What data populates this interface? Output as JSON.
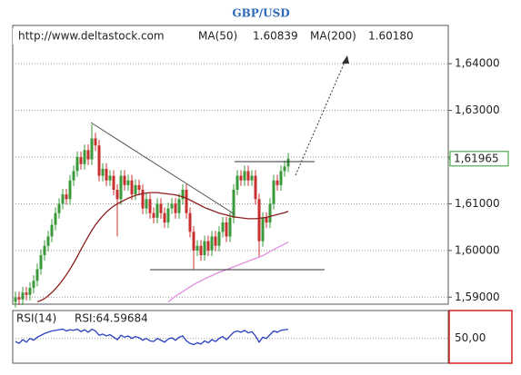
{
  "chart_data": [
    {
      "type": "candlestick",
      "title": "GBP/USD",
      "source": "http://www.deltastock.com",
      "open": [
        1.589,
        1.59,
        1.5895,
        1.591,
        1.5905,
        1.592,
        1.5935,
        1.596,
        1.599,
        1.601,
        1.603,
        1.6055,
        1.608,
        1.61,
        1.612,
        1.611,
        1.615,
        1.617,
        1.62,
        1.6185,
        1.6215,
        1.6195,
        1.624,
        1.6225,
        1.616,
        1.6175,
        1.615,
        1.616,
        1.613,
        1.611,
        1.616,
        1.614,
        1.615,
        1.612,
        1.614,
        1.613,
        1.609,
        1.611,
        1.608,
        1.607,
        1.61,
        1.608,
        1.606,
        1.609,
        1.61,
        1.608,
        1.611,
        1.613,
        1.608,
        1.604,
        1.6,
        1.601,
        1.599,
        1.602,
        1.6,
        1.603,
        1.601,
        1.604,
        1.606,
        1.603,
        1.607,
        1.613,
        1.616,
        1.615,
        1.617,
        1.615,
        1.616,
        1.611,
        1.602,
        1.607,
        1.606,
        1.61,
        1.615,
        1.614,
        1.617,
        1.618
      ],
      "high": [
        1.5912,
        1.5912,
        1.5922,
        1.5922,
        1.5932,
        1.5947,
        1.5972,
        1.6002,
        1.6022,
        1.6042,
        1.6067,
        1.6092,
        1.6112,
        1.6132,
        1.6132,
        1.6162,
        1.6182,
        1.6212,
        1.6212,
        1.6227,
        1.6227,
        1.627,
        1.6252,
        1.6237,
        1.6187,
        1.6187,
        1.6172,
        1.6172,
        1.6142,
        1.6172,
        1.6172,
        1.6162,
        1.6162,
        1.6152,
        1.6152,
        1.6142,
        1.6122,
        1.6122,
        1.6092,
        1.6112,
        1.6112,
        1.6092,
        1.6102,
        1.6112,
        1.6112,
        1.6122,
        1.6142,
        1.6142,
        1.6092,
        1.6052,
        1.6022,
        1.6022,
        1.6032,
        1.6032,
        1.6042,
        1.6042,
        1.6052,
        1.6072,
        1.6072,
        1.6082,
        1.6142,
        1.6172,
        1.6172,
        1.6182,
        1.6182,
        1.6172,
        1.6172,
        1.6122,
        1.6082,
        1.6082,
        1.6112,
        1.6162,
        1.6162,
        1.6182,
        1.6192,
        1.6209
      ],
      "low": [
        1.5878,
        1.5883,
        1.5883,
        1.5893,
        1.5893,
        1.5908,
        1.5923,
        1.5948,
        1.5978,
        1.5998,
        1.6018,
        1.6043,
        1.6068,
        1.6088,
        1.6098,
        1.6098,
        1.6138,
        1.6158,
        1.6173,
        1.6173,
        1.6183,
        1.6183,
        1.6213,
        1.6148,
        1.6148,
        1.6138,
        1.6138,
        1.6118,
        1.603,
        1.6098,
        1.6128,
        1.6128,
        1.6108,
        1.6108,
        1.6118,
        1.6078,
        1.6078,
        1.6068,
        1.6058,
        1.6058,
        1.6068,
        1.6048,
        1.6048,
        1.6078,
        1.6068,
        1.6068,
        1.6098,
        1.6068,
        1.6028,
        1.596,
        1.5988,
        1.5978,
        1.5978,
        1.5988,
        1.5988,
        1.5998,
        1.5998,
        1.6028,
        1.6018,
        1.6018,
        1.6058,
        1.6118,
        1.6138,
        1.6138,
        1.6138,
        1.6138,
        1.6098,
        1.5985,
        1.6008,
        1.6048,
        1.6048,
        1.6088,
        1.6128,
        1.6128,
        1.6158,
        1.6168
      ],
      "close": [
        1.59,
        1.5895,
        1.591,
        1.5905,
        1.592,
        1.5935,
        1.596,
        1.599,
        1.601,
        1.603,
        1.6055,
        1.608,
        1.61,
        1.612,
        1.611,
        1.615,
        1.617,
        1.62,
        1.6185,
        1.6215,
        1.6195,
        1.624,
        1.6225,
        1.616,
        1.6175,
        1.615,
        1.616,
        1.613,
        1.611,
        1.616,
        1.614,
        1.615,
        1.612,
        1.614,
        1.613,
        1.609,
        1.611,
        1.608,
        1.607,
        1.61,
        1.608,
        1.606,
        1.609,
        1.61,
        1.608,
        1.611,
        1.613,
        1.608,
        1.604,
        1.6,
        1.601,
        1.599,
        1.602,
        1.6,
        1.603,
        1.601,
        1.604,
        1.606,
        1.603,
        1.607,
        1.613,
        1.616,
        1.615,
        1.617,
        1.615,
        1.616,
        1.611,
        1.602,
        1.607,
        1.606,
        1.61,
        1.615,
        1.614,
        1.617,
        1.618,
        1.61965
      ],
      "up_color": "#3a9a3a",
      "down_color": "#c83030",
      "series": [
        {
          "name": "MA(50)",
          "color": "#8b1e1e",
          "value_label": "1.60839",
          "values": [
            null,
            null,
            null,
            null,
            null,
            null,
            1.589,
            1.5893,
            1.5897,
            1.5903,
            1.591,
            1.5918,
            1.5927,
            1.5937,
            1.5948,
            1.596,
            1.5973,
            1.5987,
            1.6002,
            1.6016,
            1.603,
            1.6043,
            1.6055,
            1.6065,
            1.6074,
            1.6082,
            1.6089,
            1.6095,
            1.61,
            1.6104,
            1.6108,
            1.6112,
            1.6115,
            1.6118,
            1.612,
            1.6122,
            1.6123,
            1.6124,
            1.6124,
            1.6124,
            1.6123,
            1.6122,
            1.6121,
            1.612,
            1.6119,
            1.6117,
            1.6115,
            1.6112,
            1.6108,
            1.6104,
            1.61,
            1.6096,
            1.6092,
            1.6089,
            1.6086,
            1.6083,
            1.608,
            1.6078,
            1.6076,
            1.6074,
            1.6072,
            1.6071,
            1.607,
            1.6069,
            1.6068,
            1.6068,
            1.6068,
            1.6069,
            1.607,
            1.6071,
            1.6073,
            1.6075,
            1.6077,
            1.6079,
            1.6081,
            1.60839
          ]
        },
        {
          "name": "MA(200)",
          "color": "#e08ce0",
          "value_label": "1.60180",
          "values": [
            null,
            null,
            null,
            null,
            null,
            null,
            null,
            null,
            null,
            null,
            null,
            null,
            null,
            null,
            null,
            null,
            null,
            null,
            null,
            null,
            null,
            null,
            null,
            null,
            null,
            null,
            null,
            null,
            null,
            null,
            null,
            null,
            null,
            null,
            null,
            null,
            null,
            null,
            null,
            null,
            null,
            null,
            1.589,
            1.5896,
            1.5902,
            1.5907,
            1.5912,
            1.5917,
            1.5922,
            1.5927,
            1.5931,
            1.5935,
            1.5939,
            1.5943,
            1.5946,
            1.595,
            1.5953,
            1.5956,
            1.5959,
            1.5962,
            1.5965,
            1.5968,
            1.5971,
            1.5974,
            1.5977,
            1.598,
            1.5983,
            1.5986,
            1.5989,
            1.5993,
            1.5998,
            1.6002,
            1.6006,
            1.601,
            1.6014,
            1.6018
          ]
        }
      ],
      "last_price": {
        "value": 1.61965,
        "label": "1,61965"
      },
      "last_price_color": "#2e9a2e",
      "ylim": [
        1.5885,
        1.6482
      ],
      "yticks": [
        {
          "value": 1.59,
          "label": "1,59000"
        },
        {
          "value": 1.6,
          "label": "1,60000"
        },
        {
          "value": 1.61,
          "label": "1,61000"
        },
        {
          "value": 1.62,
          "label": "1,62000"
        },
        {
          "value": 1.63,
          "label": "1,63000"
        },
        {
          "value": 1.64,
          "label": "1,64000"
        }
      ],
      "grid": true
    },
    {
      "type": "line",
      "name": "RSI(14)",
      "label": "RSI:64.59684",
      "color": "#2a3fc0",
      "values": [
        45,
        42,
        48,
        44,
        50,
        47,
        52,
        55,
        58,
        60,
        62,
        63,
        64,
        65,
        62,
        64,
        63,
        65,
        61,
        64,
        60,
        65,
        62,
        55,
        57,
        54,
        56,
        52,
        48,
        55,
        52,
        54,
        50,
        53,
        51,
        47,
        50,
        46,
        45,
        50,
        47,
        44,
        49,
        51,
        47,
        52,
        54,
        46,
        42,
        40,
        43,
        41,
        46,
        43,
        48,
        45,
        50,
        53,
        48,
        54,
        60,
        62,
        60,
        63,
        59,
        61,
        54,
        44,
        52,
        50,
        56,
        62,
        60,
        63,
        64,
        64.59684
      ],
      "ylim": [
        10,
        95
      ],
      "yticks": [
        {
          "value": 50,
          "label": "50,00"
        }
      ],
      "grid": true
    }
  ]
}
